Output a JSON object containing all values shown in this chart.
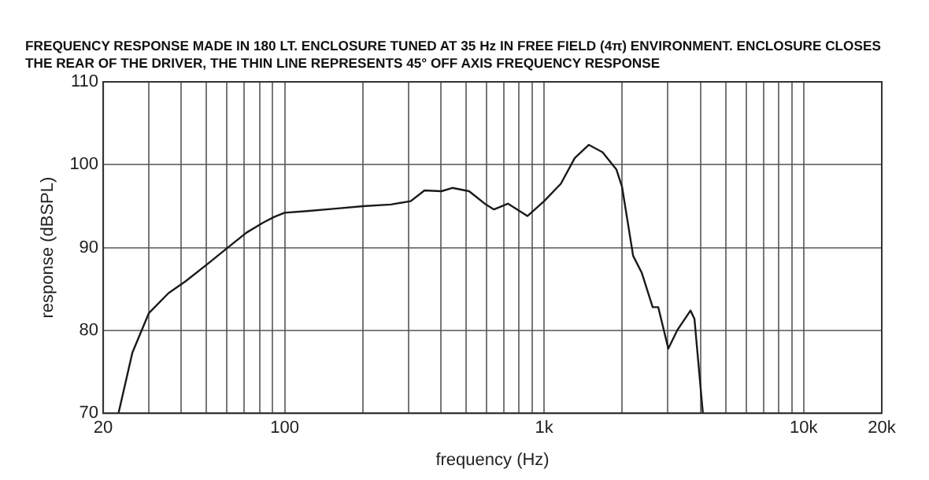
{
  "chart_data": {
    "type": "line",
    "title": "FREQUENCY RESPONSE MADE IN 180 LT. ENCLOSURE TUNED AT 35 Hz IN FREE FIELD (4π) ENVIRONMENT. ENCLOSURE CLOSES THE REAR OF THE DRIVER, THE THIN LINE REPRESENTS 45° OFF AXIS FREQUENCY RESPONSE",
    "xlabel": "frequency (Hz)",
    "ylabel": "response (dBSPL)",
    "log": "x",
    "grid": true,
    "legend": false,
    "marker": "none",
    "line_style": "solid",
    "xlim": [
      20,
      20000
    ],
    "ylim": [
      70,
      110
    ],
    "xticks": [
      20,
      {
        "value": 30,
        "label": null
      },
      {
        "value": 40,
        "label": null
      },
      {
        "value": 50,
        "label": null
      },
      {
        "value": 60,
        "label": null
      },
      {
        "value": 70,
        "label": null
      },
      {
        "value": 80,
        "label": null
      },
      {
        "value": 90,
        "label": null
      },
      100,
      {
        "value": 200,
        "label": null
      },
      {
        "value": 300,
        "label": null
      },
      {
        "value": 400,
        "label": null
      },
      {
        "value": 500,
        "label": null
      },
      {
        "value": 600,
        "label": null
      },
      {
        "value": 700,
        "label": null
      },
      {
        "value": 800,
        "label": null
      },
      {
        "value": 900,
        "label": null
      },
      {
        "value": 1000,
        "label": "1k"
      },
      {
        "value": 2000,
        "label": null
      },
      {
        "value": 3000,
        "label": null
      },
      {
        "value": 4000,
        "label": null
      },
      {
        "value": 5000,
        "label": null
      },
      {
        "value": 6000,
        "label": null
      },
      {
        "value": 7000,
        "label": null
      },
      {
        "value": 8000,
        "label": null
      },
      {
        "value": 9000,
        "label": null
      },
      {
        "value": 10000,
        "label": "10k"
      },
      {
        "value": 20000,
        "label": "20k"
      }
    ],
    "yticks": [
      70,
      80,
      90,
      100,
      110
    ],
    "series": [
      {
        "color": "#1a1a1a",
        "x": [
          22.9,
          25.9,
          30,
          35.7,
          41.4,
          50.4,
          59.9,
          71.3,
          82.6,
          91.2,
          100,
          122,
          157,
          201,
          257,
          306,
          346,
          402,
          443,
          514,
          596,
          641,
          725,
          862,
          1000,
          1160,
          1312,
          1486,
          1680,
          1900,
          1997,
          2203,
          2375,
          2620,
          2753,
          3010,
          3270,
          3665,
          3795,
          4090
        ],
        "values": [
          70,
          77.3,
          82.1,
          84.5,
          85.9,
          88.0,
          89.9,
          91.8,
          93.0,
          93.7,
          94.2,
          94.4,
          94.7,
          95.0,
          95.2,
          95.6,
          96.9,
          96.8,
          97.2,
          96.8,
          95.2,
          94.6,
          95.3,
          93.8,
          95.6,
          97.7,
          100.8,
          102.4,
          101.5,
          99.4,
          97.3,
          89.0,
          87.0,
          82.8,
          82.8,
          77.8,
          80.1,
          82.4,
          81.4,
          70
        ]
      }
    ]
  }
}
